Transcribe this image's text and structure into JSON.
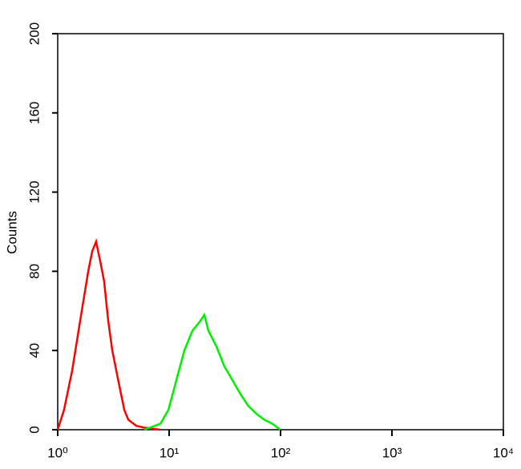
{
  "chart_data": {
    "type": "line",
    "y_label": "Counts",
    "xlog": true,
    "xlim": [
      1,
      10000
    ],
    "xticks": [
      {
        "value": 1,
        "label": "10⁰"
      },
      {
        "value": 10,
        "label": "10¹"
      },
      {
        "value": 100,
        "label": "10²"
      },
      {
        "value": 1000,
        "label": "10³"
      },
      {
        "value": 10000,
        "label": "10⁴"
      }
    ],
    "ylim": [
      0,
      200
    ],
    "yticks": [
      0,
      40,
      80,
      120,
      160,
      200
    ],
    "series": [
      {
        "color": "#ff0000",
        "x": [
          1,
          1.14,
          1.35,
          1.59,
          1.88,
          2.04,
          2.21,
          2.41,
          2.61,
          2.84,
          3.09,
          3.35,
          3.64,
          3.96,
          4.3,
          5.07,
          5.98,
          8.3
        ],
        "values": [
          0,
          10,
          30,
          55,
          80,
          90,
          95,
          85,
          75,
          55,
          40,
          30,
          20,
          10,
          5,
          2,
          1,
          0
        ]
      },
      {
        "color": "#00ee00",
        "x": [
          5.98,
          8.35,
          9.85,
          11.6,
          13.7,
          16.2,
          19.1,
          20.7,
          22.5,
          26.6,
          31.3,
          37,
          43.6,
          51.5,
          60.7,
          71.6,
          84.5,
          99.7
        ],
        "values": [
          0,
          3,
          10,
          25,
          40,
          50,
          55,
          58,
          50,
          42,
          32,
          25,
          18,
          12,
          8,
          5,
          3,
          0
        ]
      }
    ]
  }
}
